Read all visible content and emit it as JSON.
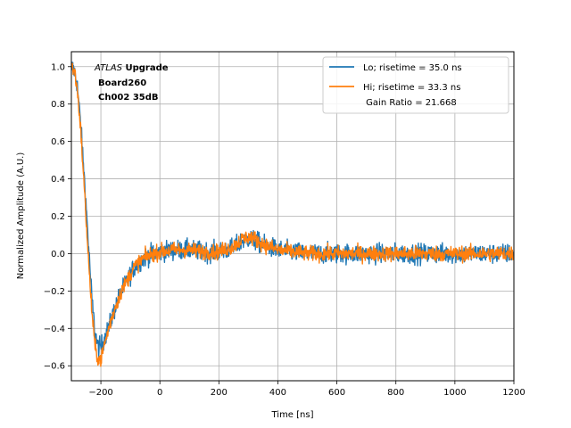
{
  "chart_data": {
    "type": "line",
    "xlabel": "Time [ns]",
    "ylabel": "Normalized Amplitude (A.U.)",
    "xlim": [
      -300,
      1200
    ],
    "ylim": [
      -0.68,
      1.08
    ],
    "x_ticks": [
      -200,
      0,
      200,
      400,
      600,
      800,
      1000,
      1200
    ],
    "y_ticks": [
      -0.6,
      -0.4,
      -0.2,
      0.0,
      0.2,
      0.4,
      0.6,
      0.8,
      1.0
    ],
    "x_tick_labels": [
      "−200",
      "0",
      "200",
      "400",
      "600",
      "800",
      "1000",
      "1200"
    ],
    "y_tick_labels": [
      "−0.6",
      "−0.4",
      "−0.2",
      "0.0",
      "0.2",
      "0.4",
      "0.6",
      "0.8",
      "1.0"
    ],
    "grid": true,
    "legend_position": "top-right",
    "annotation": {
      "experiment": "ATLAS",
      "line1_suffix": "Upgrade",
      "line2": "Board260",
      "line3": "Ch002 35dB"
    },
    "legend": {
      "entries": [
        "Lo; risetime = 35.0 ns",
        "Hi; risetime = 33.3 ns"
      ],
      "extra": " Gain Ratio = 21.668"
    },
    "series": [
      {
        "name": "Lo; risetime = 35.0 ns",
        "color": "#1f77b4",
        "noise": 0.045,
        "x": [
          -300,
          -290,
          -280,
          -270,
          -260,
          -250,
          -240,
          -230,
          -220,
          -210,
          -200,
          -190,
          -180,
          -170,
          -160,
          -150,
          -140,
          -130,
          -120,
          -110,
          -100,
          -90,
          -80,
          -60,
          -40,
          -20,
          0,
          50,
          100,
          150,
          200,
          250,
          280,
          300,
          320,
          350,
          400,
          450,
          500,
          600,
          700,
          800,
          900,
          1000,
          1100,
          1200
        ],
        "y": [
          1.0,
          0.98,
          0.9,
          0.72,
          0.5,
          0.25,
          0.0,
          -0.25,
          -0.42,
          -0.5,
          -0.5,
          -0.46,
          -0.42,
          -0.38,
          -0.33,
          -0.28,
          -0.24,
          -0.2,
          -0.17,
          -0.14,
          -0.11,
          -0.08,
          -0.06,
          -0.03,
          -0.01,
          0.0,
          0.01,
          0.02,
          0.02,
          0.01,
          0.01,
          0.03,
          0.07,
          0.08,
          0.07,
          0.05,
          0.02,
          0.01,
          0.0,
          0.0,
          0.0,
          0.0,
          0.0,
          0.0,
          0.0,
          0.0
        ]
      },
      {
        "name": "Hi; risetime = 33.3 ns",
        "color": "#ff7f0e",
        "noise": 0.035,
        "x": [
          -300,
          -290,
          -280,
          -270,
          -260,
          -250,
          -240,
          -230,
          -220,
          -210,
          -200,
          -190,
          -180,
          -170,
          -160,
          -150,
          -140,
          -130,
          -120,
          -110,
          -100,
          -90,
          -80,
          -60,
          -40,
          -20,
          0,
          50,
          100,
          150,
          200,
          250,
          280,
          300,
          320,
          350,
          400,
          450,
          500,
          600,
          700,
          800,
          900,
          1000,
          1100,
          1200
        ],
        "y": [
          1.0,
          0.98,
          0.88,
          0.7,
          0.45,
          0.18,
          -0.08,
          -0.32,
          -0.5,
          -0.56,
          -0.57,
          -0.5,
          -0.44,
          -0.38,
          -0.33,
          -0.28,
          -0.24,
          -0.2,
          -0.17,
          -0.14,
          -0.11,
          -0.08,
          -0.06,
          -0.03,
          -0.01,
          0.0,
          0.01,
          0.02,
          0.02,
          0.01,
          0.01,
          0.04,
          0.08,
          0.09,
          0.08,
          0.05,
          0.02,
          0.01,
          0.0,
          0.0,
          0.0,
          0.0,
          0.0,
          0.0,
          0.0,
          0.0
        ]
      }
    ]
  }
}
